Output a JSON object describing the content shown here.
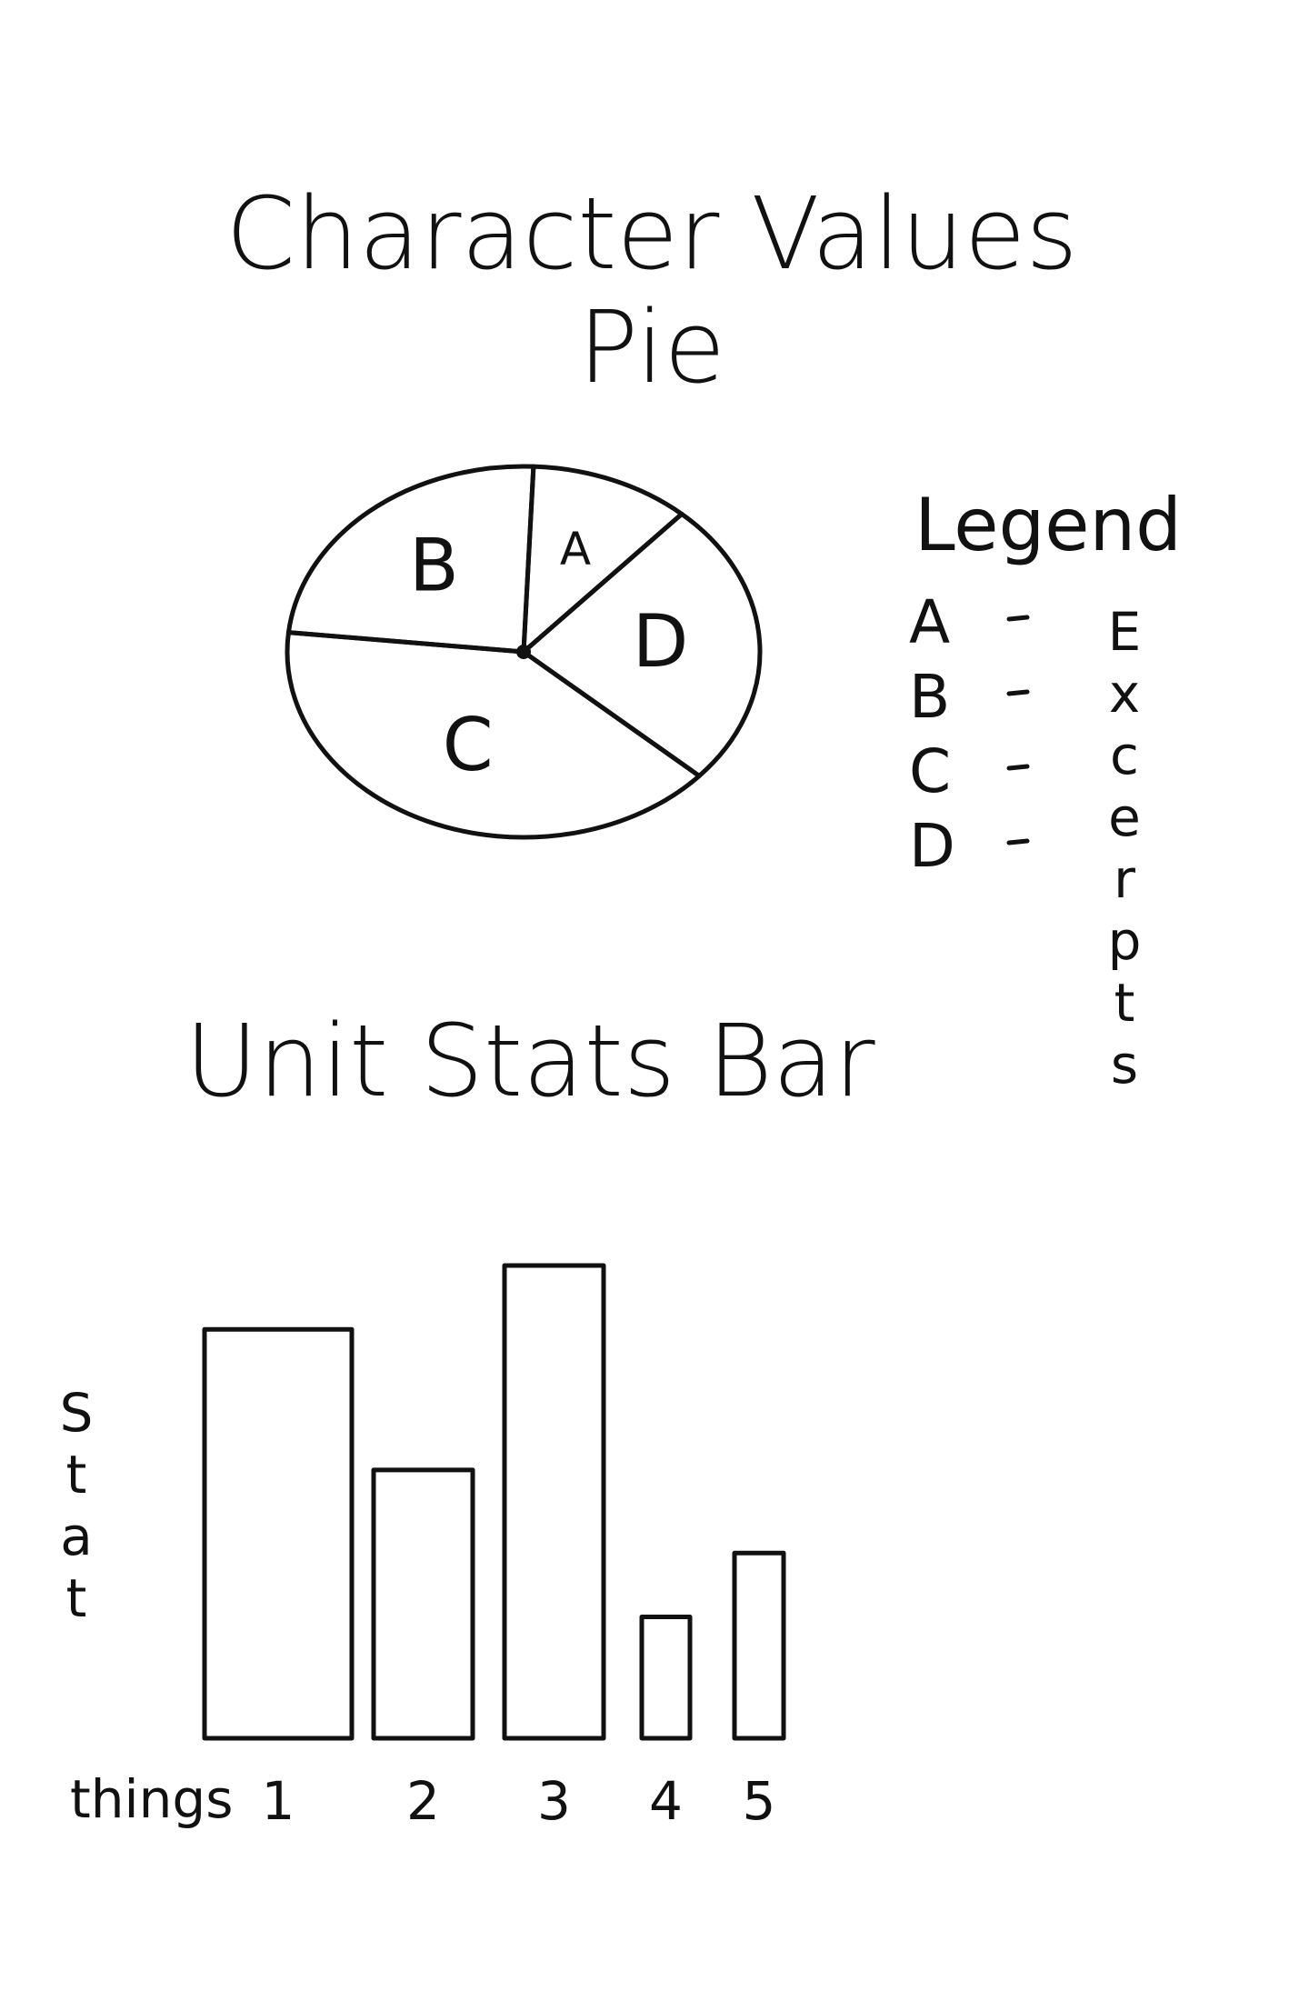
{
  "chart_data": [
    {
      "type": "pie",
      "title": "Character Values Pie",
      "categories": [
        "A",
        "B",
        "C",
        "D"
      ],
      "values": [
        11,
        24,
        40,
        25
      ],
      "legend_title": "Legend",
      "legend_label": "Excerpts"
    },
    {
      "type": "bar",
      "title": "Unit Stats Bar",
      "categories": [
        "1",
        "2",
        "3",
        "4",
        "5"
      ],
      "values": [
        32,
        21,
        37,
        9.5,
        14.5
      ],
      "xlabel": "things",
      "ylabel": "Stat"
    }
  ]
}
